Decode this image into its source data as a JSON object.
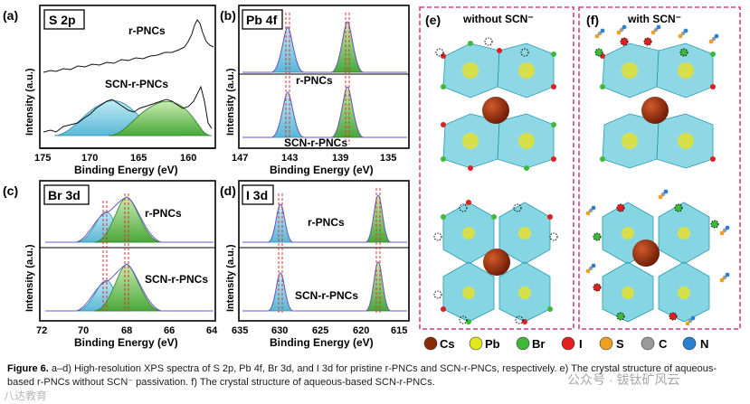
{
  "panels": {
    "a": {
      "tag": "(a)",
      "label": "S 2p",
      "top_text": "r-PNCs",
      "bottom_text": "SCN-r-PNCs",
      "xticks": [
        "175",
        "170",
        "165",
        "160"
      ],
      "xlabel": "Binding Energy (eV)",
      "ylabel": "Intensity (a.u.)"
    },
    "b": {
      "tag": "(b)",
      "label": "Pb 4f",
      "top_text": "r-PNCs",
      "bottom_text": "SCN-r-PNCs",
      "xticks": [
        "147",
        "143",
        "139",
        "135"
      ],
      "xlabel": "Binding Energy (eV)",
      "ylabel": "Intensity (a.u.)"
    },
    "c": {
      "tag": "(c)",
      "label": "Br 3d",
      "top_text": "r-PNCs",
      "bottom_text": "SCN-r-PNCs",
      "xticks": [
        "72",
        "70",
        "68",
        "66",
        "64"
      ],
      "xlabel": "Binding Energy (eV)",
      "ylabel": "Intensity (a.u.)"
    },
    "d": {
      "tag": "(d)",
      "label": "I 3d",
      "top_text": "r-PNCs",
      "bottom_text": "SCN-r-PNCs",
      "xticks": [
        "635",
        "630",
        "625",
        "620",
        "615"
      ],
      "xlabel": "Binding Energy (eV)",
      "ylabel": "Intensity (a.u.)"
    },
    "e": {
      "tag": "(e)",
      "title": "without SCN⁻"
    },
    "f": {
      "tag": "(f)",
      "title": "with SCN⁻"
    }
  },
  "legend": {
    "items": [
      {
        "label": "Cs",
        "color": "#8b2a0a"
      },
      {
        "label": "Pb",
        "color": "#e3e61c"
      },
      {
        "label": "Br",
        "color": "#3fb83a"
      },
      {
        "label": "I",
        "color": "#e02020"
      },
      {
        "label": "S",
        "color": "#f0a020"
      },
      {
        "label": "C",
        "color": "#9a9a9a"
      },
      {
        "label": "N",
        "color": "#2a7fd0"
      }
    ]
  },
  "caption": {
    "fig_label": "Figure 6.",
    "text": "a–d) High-resolution XPS spectra of S 2p, Pb 4f, Br 3d, and I 3d for pristine r-PNCs and SCN-r-PNCs, respectively. e) The crystal structure of aqueous-based r-PNCs without SCN⁻ passivation. f) The crystal structure of aqueous-based SCN-r-PNCs."
  },
  "watermark": {
    "left": "八达教育",
    "right": "公众号 · 钹钛矿风云"
  },
  "colors": {
    "cyan_fill": "#7fd3e4",
    "green_fill": "#6cc24a",
    "envelope": "#6a5acd",
    "frame": "#d63a8c",
    "octa": "#5cc8d8"
  }
}
